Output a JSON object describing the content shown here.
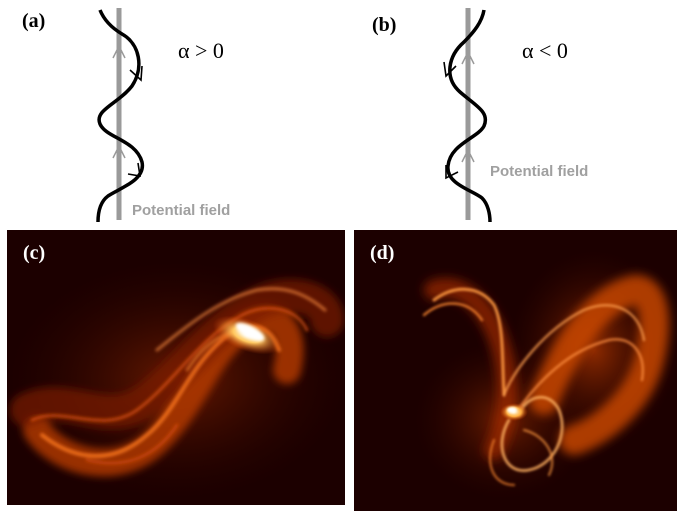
{
  "panels": {
    "a": {
      "label": "(a)",
      "alpha": "α > 0",
      "field_label": "Potential field"
    },
    "b": {
      "label": "(b)",
      "alpha": "α < 0",
      "field_label": "Potential field"
    },
    "c": {
      "label": "(c)"
    },
    "d": {
      "label": "(d)"
    }
  },
  "colors": {
    "potential_field": "#9a9a9a",
    "twisted_line": "#000000",
    "coronal_dark": "#1a0000",
    "coronal_mid": "#c83a00",
    "coronal_bright": "#fff4c8"
  }
}
